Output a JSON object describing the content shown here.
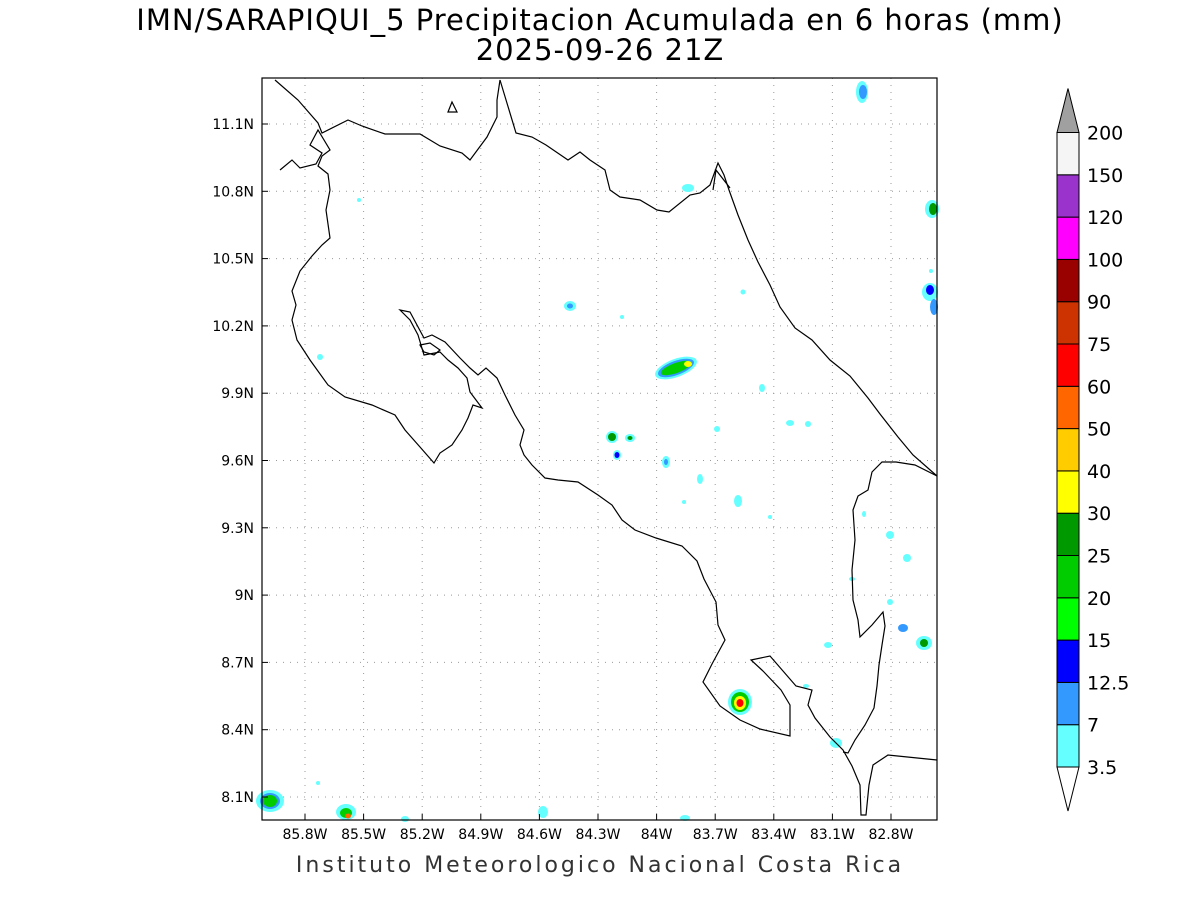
{
  "title": "IMN/SARAPIQUI_5 Precipitacion Acumulada en 6 horas (mm)",
  "subtitle": "2025-09-26 21Z",
  "footer": "Instituto Meteorologico Nacional Costa Rica",
  "map": {
    "lon_range": [
      -85.97,
      -82.97
    ],
    "lat_range": [
      8.0,
      11.3
    ],
    "x_ticks": [
      "85.8W",
      "85.5W",
      "85.2W",
      "84.9W",
      "84.6W",
      "84.3W",
      "84W",
      "83.7W",
      "83.4W",
      "83.1W",
      "82.8W"
    ],
    "y_ticks": [
      "11.1N",
      "10.8N",
      "10.5N",
      "10.2N",
      "9.9N",
      "9.6N",
      "9.3N",
      "9N",
      "8.7N",
      "8.4N",
      "8.1N"
    ],
    "grid": true
  },
  "colorbar": {
    "levels": [
      "3.5",
      "7",
      "12.5",
      "15",
      "20",
      "25",
      "30",
      "40",
      "50",
      "60",
      "75",
      "90",
      "100",
      "120",
      "150",
      "200"
    ],
    "colors": [
      "#66ffff",
      "#3399ff",
      "#0000ff",
      "#00ff00",
      "#00cc00",
      "#009900",
      "#ffff00",
      "#ffcc00",
      "#ff6600",
      "#ff0000",
      "#cc3300",
      "#990000",
      "#ff00ff",
      "#9933cc",
      "#f5f5f5"
    ],
    "overflow_color": "#a0a0a0"
  }
}
